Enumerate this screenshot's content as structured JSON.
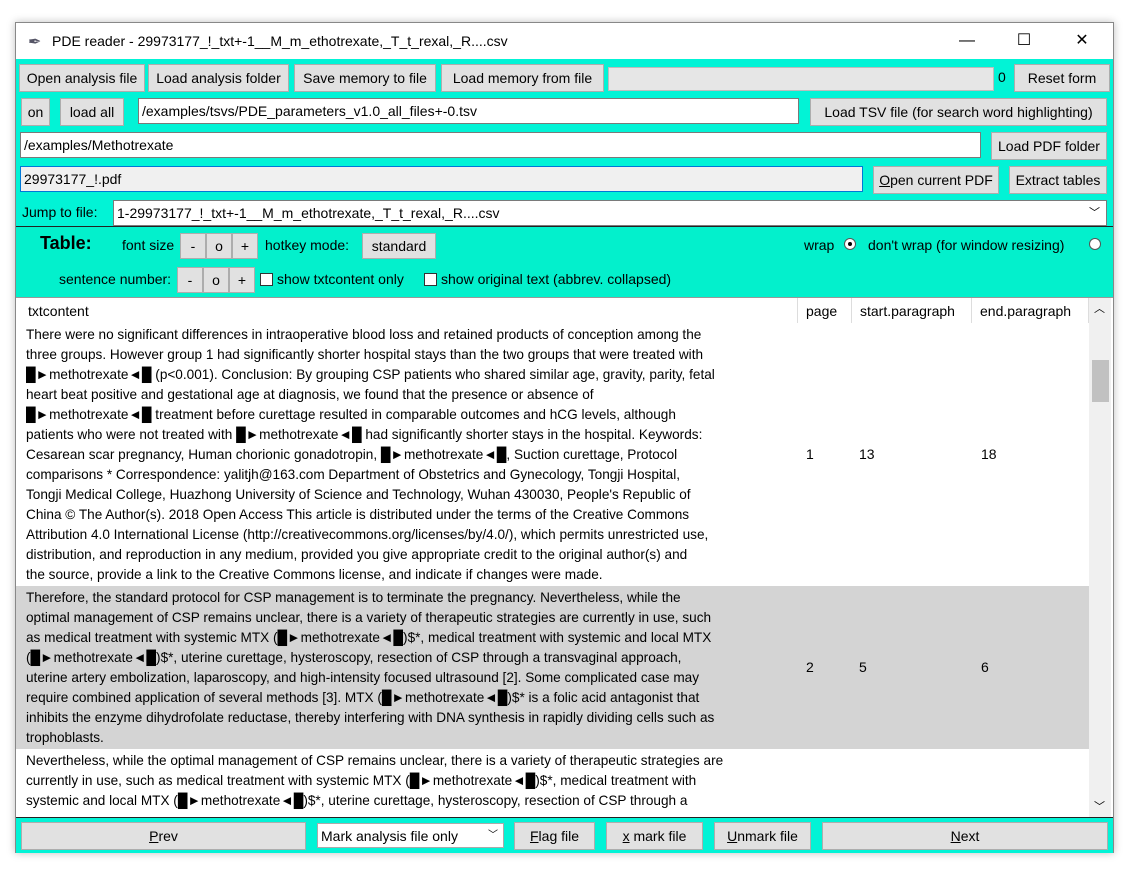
{
  "window": {
    "title": "PDE reader - 29973177_!_txt+-1__M_m_ethotrexate,_T_t_rexal,_R....csv",
    "icon": "feather-icon"
  },
  "toolbar": {
    "open_analysis_file": "Open analysis file",
    "load_analysis_folder": "Load analysis folder",
    "save_memory": "Save memory to file",
    "load_memory": "Load memory from file",
    "progress_count": "0",
    "progress": 0,
    "reset_form": "Reset form"
  },
  "tsv": {
    "on": "on",
    "load_all": "load all",
    "path": "/examples/tsvs/PDE_parameters_v1.0_all_files+-0.tsv",
    "load_tsv": "Load TSV file (for search word highlighting)"
  },
  "pdf": {
    "folder_path": "/examples/Methotrexate",
    "load_pdf_folder": "Load PDF folder",
    "current_pdf": "29973177_!.pdf",
    "open_current_pdf": "Open current PDF",
    "extract_tables": "Extract tables"
  },
  "jump": {
    "label": "Jump to file:",
    "value": "1-29973177_!_txt+-1__M_m_ethotrexate,_T_t_rexal,_R....csv"
  },
  "table_panel": {
    "title": "Table:",
    "font_size": "font size",
    "minus": "-",
    "reset": "o",
    "plus": "+",
    "hotkey_mode": "hotkey mode:",
    "hotkey_value": "standard",
    "wrap": "wrap",
    "dont_wrap": "don't wrap (for window resizing)",
    "sentence_number": "sentence number:",
    "show_txtcontent_only": "show txtcontent only",
    "show_original_text": "show original text (abbrev. collapsed)",
    "wrap_selected": true
  },
  "table": {
    "columns": [
      "txtcontent",
      "page",
      "start.paragraph",
      "end.paragraph"
    ],
    "rows": [
      {
        "page": "1",
        "start": "13",
        "end": "18",
        "lines": [
          "There were no significant differences in intraoperative blood loss and retained products of conception among the",
          "three groups. However group 1 had significantly shorter hospital stays than the two groups that were treated with",
          "█►methotrexate◄█ (p<0.001). Conclusion: By grouping CSP patients who shared similar age, gravity, parity, fetal",
          "heart beat positive and gestational age at diagnosis, we found that the presence or absence of",
          "█►methotrexate◄█ treatment before curettage resulted in comparable outcomes and hCG levels, although",
          "patients who were not treated with █►methotrexate◄█ had significantly shorter stays in the hospital. Keywords:",
          "Cesarean scar pregnancy, Human chorionic gonadotropin, █►methotrexate◄█, Suction curettage, Protocol",
          "comparisons  * Correspondence: yalitjh@163.com Department of Obstetrics and Gynecology, Tongji Hospital,",
          "Tongji Medical College, Huazhong University of Science and Technology, Wuhan 430030, People's Republic of",
          "China © The Author(s). 2018 Open Access This article is distributed under the terms of the Creative Commons",
          "Attribution 4.0 International License (http://creativecommons.org/licenses/by/4.0/), which permits unrestricted use,",
          "distribution, and reproduction in any medium, provided you give appropriate credit to the original author(s) and",
          "the source, provide a link to the Creative Commons license, and indicate if changes were made."
        ]
      },
      {
        "page": "2",
        "start": "5",
        "end": "6",
        "lines": [
          "Therefore, the standard protocol for CSP management is to terminate the pregnancy. Nevertheless, while the",
          "optimal management of CSP remains unclear, there is a variety of therapeutic strategies are currently in use, such",
          "as medical treatment with systemic MTX (█►methotrexate◄█)$*, medical treatment with systemic and local MTX",
          "(█►methotrexate◄█)$*, uterine curettage, hysteroscopy, resection of CSP through a transvaginal approach,",
          "uterine artery embolization, laparoscopy, and high-intensity focused ultrasound [2]. Some complicated case may",
          "require combined application of several methods [3]. MTX (█►methotrexate◄█)$* is a folic acid antagonist that",
          "inhibits the enzyme dihydrofolate reductase, thereby interfering with DNA synthesis in rapidly dividing cells such as",
          "trophoblasts."
        ]
      },
      {
        "page": "",
        "start": "",
        "end": "",
        "lines": [
          "Nevertheless, while the optimal management of CSP remains unclear, there is a variety of therapeutic strategies are",
          "currently in use, such as medical treatment with systemic MTX (█►methotrexate◄█)$*, medical treatment with",
          "systemic and local MTX (█►methotrexate◄█)$*, uterine curettage, hysteroscopy, resection of CSP through a"
        ]
      }
    ]
  },
  "bottom": {
    "prev": "Prev",
    "mark_mode": "Mark analysis file only",
    "flag_file": "Flag file",
    "x_mark_file": "x mark file",
    "unmark_file": "Unmark file",
    "next": "Next"
  },
  "colors": {
    "background": "#02f3d6",
    "table_panel": "#03f0cc",
    "selected_row": "#d4d4d4"
  }
}
